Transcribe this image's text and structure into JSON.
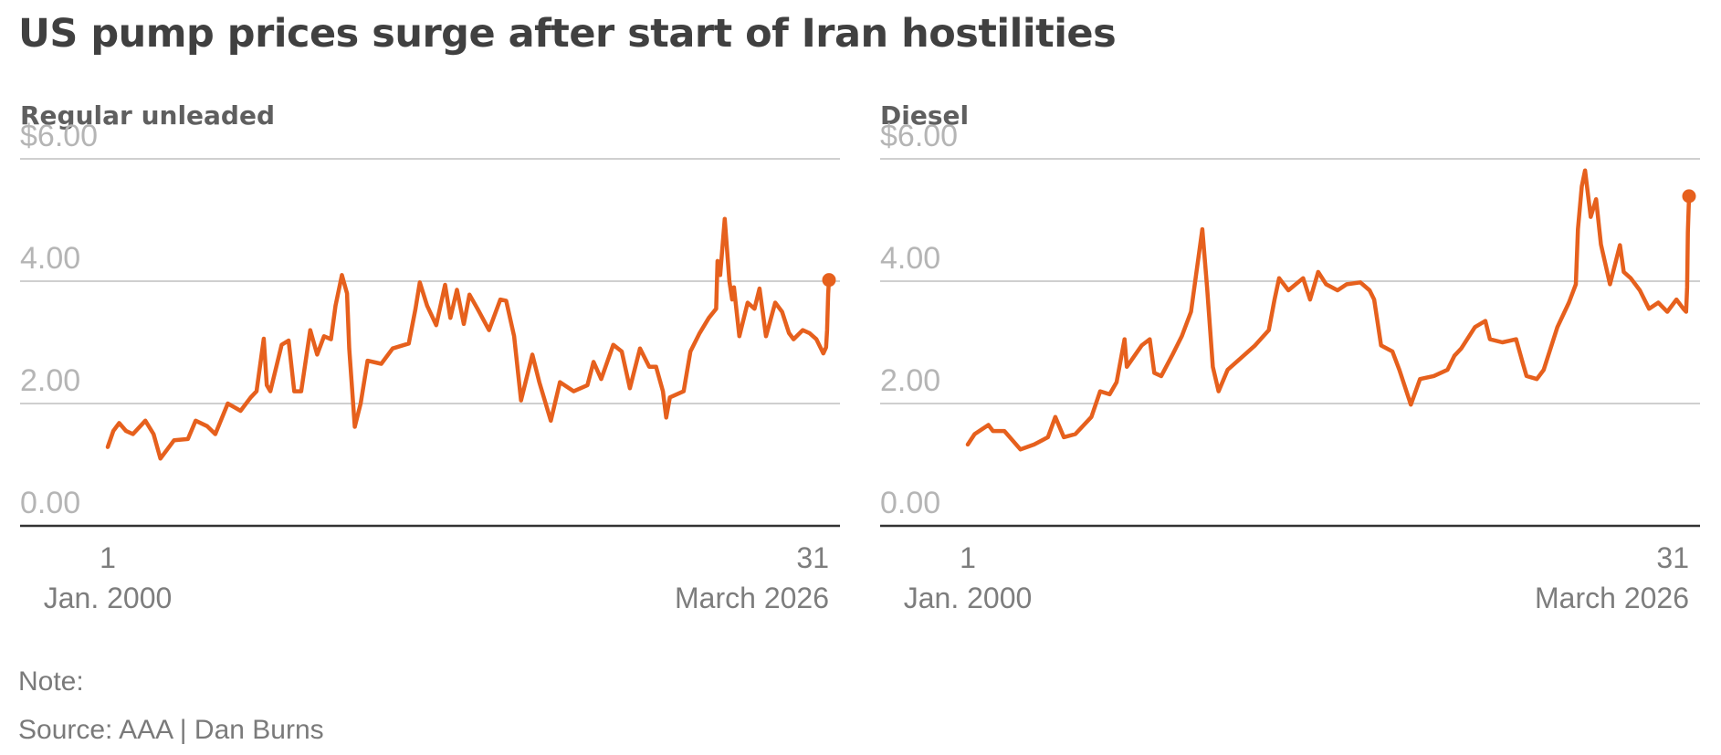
{
  "title": "US pump prices surge after start of Iran hostilities",
  "note": "Note:",
  "source": "Source: AAA | Dan Burns",
  "accent_color": "#e6601d",
  "chart_data": [
    {
      "type": "line",
      "title": "Regular unleaded",
      "ylim": [
        0,
        6
      ],
      "yticks": [
        0,
        2,
        4,
        6
      ],
      "ytick_labels": [
        "0.00",
        "2.00",
        "4.00",
        "$6.00"
      ],
      "x_range": [
        "2000-01-01",
        "2026-03-31"
      ],
      "xtick_labels": [
        {
          "day": "1",
          "month": "Jan. 2000"
        },
        {
          "day": "31",
          "month": "March 2026"
        }
      ],
      "grid": true,
      "end_marker": true,
      "series": [
        {
          "color": "#e6601d",
          "points": [
            [
              "2000-01-01",
              1.29
            ],
            [
              "2000-03-15",
              1.55
            ],
            [
              "2000-06-01",
              1.68
            ],
            [
              "2000-09-01",
              1.55
            ],
            [
              "2000-12-01",
              1.5
            ],
            [
              "2001-05-15",
              1.72
            ],
            [
              "2001-09-01",
              1.5
            ],
            [
              "2001-12-01",
              1.1
            ],
            [
              "2002-06-01",
              1.4
            ],
            [
              "2002-12-01",
              1.42
            ],
            [
              "2003-03-15",
              1.72
            ],
            [
              "2003-08-15",
              1.63
            ],
            [
              "2003-12-01",
              1.5
            ],
            [
              "2004-05-15",
              2.0
            ],
            [
              "2004-11-01",
              1.88
            ],
            [
              "2005-03-15",
              2.1
            ],
            [
              "2005-06-01",
              2.2
            ],
            [
              "2005-09-05",
              3.06
            ],
            [
              "2005-10-15",
              2.3
            ],
            [
              "2005-12-01",
              2.2
            ],
            [
              "2006-05-01",
              2.96
            ],
            [
              "2006-08-01",
              3.03
            ],
            [
              "2006-10-15",
              2.2
            ],
            [
              "2007-01-15",
              2.2
            ],
            [
              "2007-05-15",
              3.2
            ],
            [
              "2007-08-15",
              2.8
            ],
            [
              "2007-11-15",
              3.1
            ],
            [
              "2008-02-15",
              3.05
            ],
            [
              "2008-04-15",
              3.6
            ],
            [
              "2008-07-10",
              4.1
            ],
            [
              "2008-09-15",
              3.8
            ],
            [
              "2008-10-15",
              2.9
            ],
            [
              "2008-12-28",
              1.62
            ],
            [
              "2009-03-15",
              2.0
            ],
            [
              "2009-06-15",
              2.7
            ],
            [
              "2009-12-15",
              2.65
            ],
            [
              "2010-05-15",
              2.9
            ],
            [
              "2010-12-15",
              2.98
            ],
            [
              "2011-03-15",
              3.55
            ],
            [
              "2011-05-10",
              3.98
            ],
            [
              "2011-08-15",
              3.6
            ],
            [
              "2011-12-15",
              3.28
            ],
            [
              "2012-04-10",
              3.94
            ],
            [
              "2012-06-20",
              3.4
            ],
            [
              "2012-09-15",
              3.86
            ],
            [
              "2012-12-15",
              3.3
            ],
            [
              "2013-03-01",
              3.78
            ],
            [
              "2013-06-15",
              3.55
            ],
            [
              "2013-11-15",
              3.2
            ],
            [
              "2014-04-15",
              3.7
            ],
            [
              "2014-07-01",
              3.68
            ],
            [
              "2014-10-15",
              3.1
            ],
            [
              "2015-01-15",
              2.05
            ],
            [
              "2015-06-15",
              2.8
            ],
            [
              "2015-09-15",
              2.35
            ],
            [
              "2016-02-15",
              1.72
            ],
            [
              "2016-06-15",
              2.35
            ],
            [
              "2016-12-15",
              2.2
            ],
            [
              "2017-06-15",
              2.3
            ],
            [
              "2017-09-05",
              2.68
            ],
            [
              "2017-12-15",
              2.4
            ],
            [
              "2018-05-25",
              2.96
            ],
            [
              "2018-09-15",
              2.85
            ],
            [
              "2018-12-31",
              2.25
            ],
            [
              "2019-05-15",
              2.9
            ],
            [
              "2019-09-15",
              2.6
            ],
            [
              "2019-12-15",
              2.6
            ],
            [
              "2020-03-15",
              2.2
            ],
            [
              "2020-04-28",
              1.77
            ],
            [
              "2020-06-15",
              2.1
            ],
            [
              "2020-12-15",
              2.2
            ],
            [
              "2021-03-15",
              2.85
            ],
            [
              "2021-07-15",
              3.15
            ],
            [
              "2021-11-15",
              3.4
            ],
            [
              "2022-02-20",
              3.55
            ],
            [
              "2022-03-11",
              4.33
            ],
            [
              "2022-04-15",
              4.1
            ],
            [
              "2022-06-14",
              5.02
            ],
            [
              "2022-08-15",
              4.0
            ],
            [
              "2022-09-20",
              3.7
            ],
            [
              "2022-10-15",
              3.9
            ],
            [
              "2022-12-25",
              3.1
            ],
            [
              "2023-04-15",
              3.65
            ],
            [
              "2023-07-15",
              3.55
            ],
            [
              "2023-09-20",
              3.88
            ],
            [
              "2023-12-15",
              3.1
            ],
            [
              "2024-04-15",
              3.65
            ],
            [
              "2024-07-15",
              3.5
            ],
            [
              "2024-10-15",
              3.15
            ],
            [
              "2024-12-15",
              3.05
            ],
            [
              "2025-04-15",
              3.2
            ],
            [
              "2025-07-15",
              3.15
            ],
            [
              "2025-10-15",
              3.05
            ],
            [
              "2026-01-15",
              2.82
            ],
            [
              "2026-02-20",
              2.92
            ],
            [
              "2026-03-05",
              3.2
            ],
            [
              "2026-03-20",
              3.8
            ],
            [
              "2026-03-31",
              4.02
            ]
          ]
        }
      ]
    },
    {
      "type": "line",
      "title": "Diesel",
      "ylim": [
        0,
        6
      ],
      "yticks": [
        0,
        2,
        4,
        6
      ],
      "ytick_labels": [
        "0.00",
        "2.00",
        "4.00",
        "$6.00"
      ],
      "x_range": [
        "2000-01-01",
        "2026-03-31"
      ],
      "xtick_labels": [
        {
          "day": "1",
          "month": "Jan. 2000"
        },
        {
          "day": "31",
          "month": "March 2026"
        }
      ],
      "grid": true,
      "end_marker": true,
      "series": [
        {
          "color": "#e6601d",
          "points": [
            [
              "2000-01-01",
              1.33
            ],
            [
              "2000-04-01",
              1.5
            ],
            [
              "2000-10-01",
              1.65
            ],
            [
              "2000-12-01",
              1.55
            ],
            [
              "2001-05-01",
              1.55
            ],
            [
              "2001-12-01",
              1.25
            ],
            [
              "2002-06-01",
              1.33
            ],
            [
              "2002-12-01",
              1.45
            ],
            [
              "2003-03-10",
              1.78
            ],
            [
              "2003-07-01",
              1.45
            ],
            [
              "2003-12-01",
              1.5
            ],
            [
              "2004-07-01",
              1.78
            ],
            [
              "2004-10-25",
              2.2
            ],
            [
              "2005-03-01",
              2.15
            ],
            [
              "2005-06-01",
              2.35
            ],
            [
              "2005-09-15",
              3.05
            ],
            [
              "2005-10-15",
              2.6
            ],
            [
              "2006-05-01",
              2.95
            ],
            [
              "2006-08-15",
              3.05
            ],
            [
              "2006-10-15",
              2.5
            ],
            [
              "2007-01-15",
              2.45
            ],
            [
              "2007-06-15",
              2.8
            ],
            [
              "2007-10-15",
              3.1
            ],
            [
              "2008-02-15",
              3.5
            ],
            [
              "2008-07-14",
              4.85
            ],
            [
              "2008-09-15",
              3.9
            ],
            [
              "2008-12-01",
              2.6
            ],
            [
              "2009-02-15",
              2.2
            ],
            [
              "2009-06-15",
              2.55
            ],
            [
              "2009-12-15",
              2.75
            ],
            [
              "2010-06-15",
              2.95
            ],
            [
              "2010-12-15",
              3.2
            ],
            [
              "2011-03-01",
              3.7
            ],
            [
              "2011-05-01",
              4.05
            ],
            [
              "2011-09-01",
              3.85
            ],
            [
              "2012-03-15",
              4.05
            ],
            [
              "2012-06-15",
              3.7
            ],
            [
              "2012-10-01",
              4.15
            ],
            [
              "2013-01-15",
              3.95
            ],
            [
              "2013-06-15",
              3.85
            ],
            [
              "2013-10-15",
              3.95
            ],
            [
              "2014-04-15",
              3.98
            ],
            [
              "2014-08-15",
              3.85
            ],
            [
              "2014-10-15",
              3.7
            ],
            [
              "2015-01-15",
              2.95
            ],
            [
              "2015-06-15",
              2.85
            ],
            [
              "2015-09-15",
              2.55
            ],
            [
              "2016-02-15",
              1.98
            ],
            [
              "2016-06-15",
              2.4
            ],
            [
              "2016-12-15",
              2.45
            ],
            [
              "2017-06-15",
              2.55
            ],
            [
              "2017-09-15",
              2.78
            ],
            [
              "2017-12-15",
              2.9
            ],
            [
              "2018-06-15",
              3.25
            ],
            [
              "2018-11-01",
              3.35
            ],
            [
              "2018-12-31",
              3.05
            ],
            [
              "2019-06-15",
              3.0
            ],
            [
              "2019-12-15",
              3.05
            ],
            [
              "2020-03-15",
              2.65
            ],
            [
              "2020-05-01",
              2.45
            ],
            [
              "2020-09-15",
              2.4
            ],
            [
              "2020-12-15",
              2.55
            ],
            [
              "2021-06-15",
              3.25
            ],
            [
              "2021-11-15",
              3.65
            ],
            [
              "2022-02-15",
              3.95
            ],
            [
              "2022-03-15",
              4.85
            ],
            [
              "2022-05-05",
              5.55
            ],
            [
              "2022-06-18",
              5.81
            ],
            [
              "2022-09-01",
              5.05
            ],
            [
              "2022-11-12",
              5.34
            ],
            [
              "2023-01-15",
              4.6
            ],
            [
              "2023-05-15",
              3.95
            ],
            [
              "2023-09-25",
              4.59
            ],
            [
              "2023-11-15",
              4.15
            ],
            [
              "2024-02-15",
              4.05
            ],
            [
              "2024-06-15",
              3.85
            ],
            [
              "2024-10-15",
              3.55
            ],
            [
              "2025-02-15",
              3.65
            ],
            [
              "2025-06-15",
              3.5
            ],
            [
              "2025-10-15",
              3.7
            ],
            [
              "2026-01-15",
              3.55
            ],
            [
              "2026-02-20",
              3.5
            ],
            [
              "2026-03-05",
              3.9
            ],
            [
              "2026-03-15",
              4.8
            ],
            [
              "2026-03-31",
              5.39
            ]
          ]
        }
      ]
    }
  ]
}
